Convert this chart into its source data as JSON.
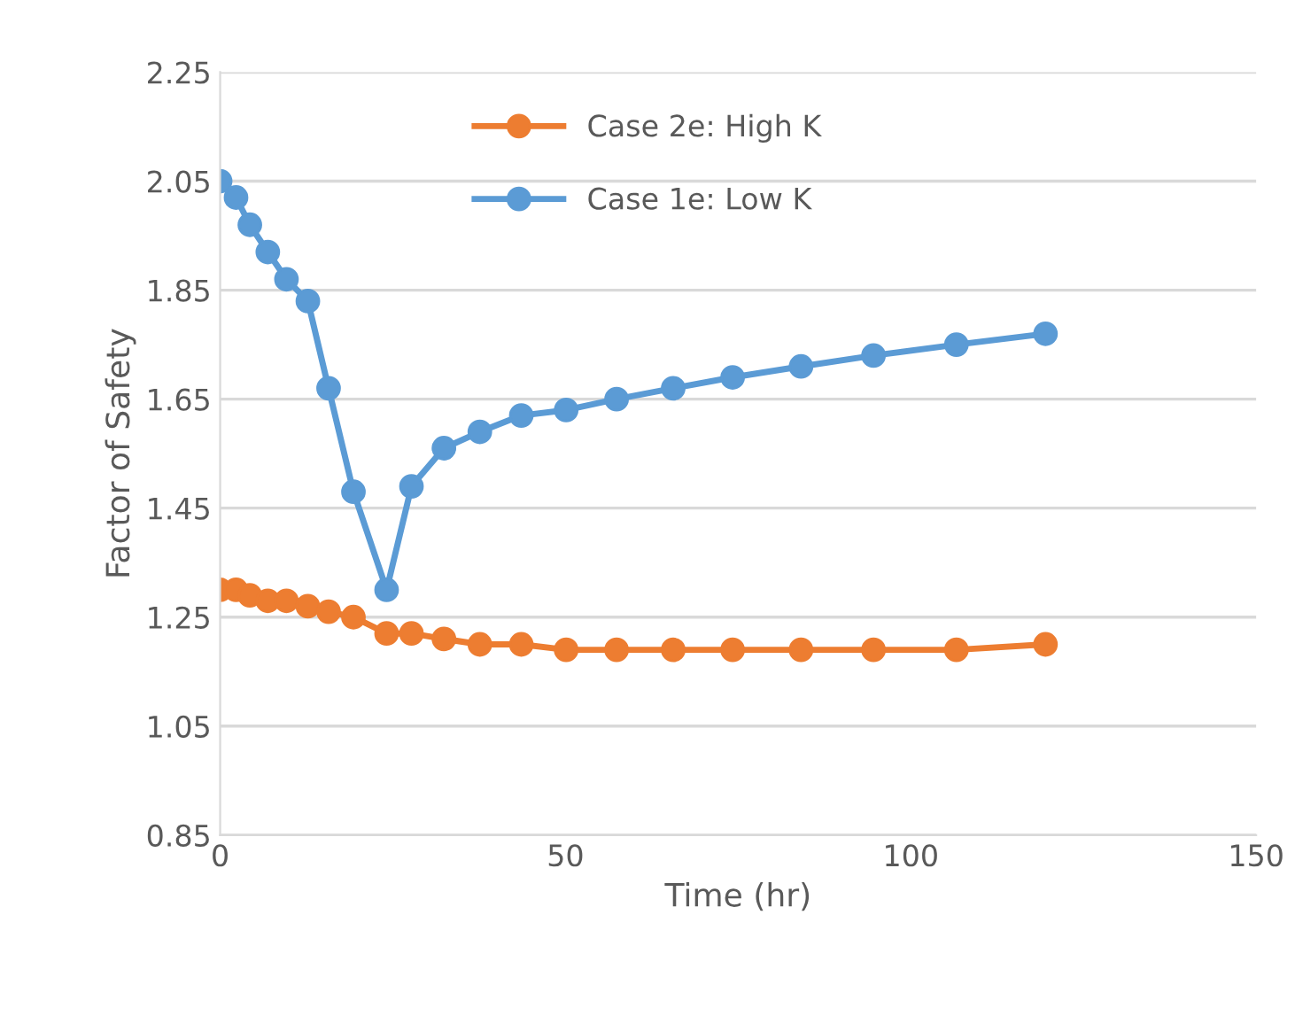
{
  "chart_data": {
    "type": "line",
    "xlabel": "Time (hr)",
    "ylabel": "Factor of Safety",
    "xlim": [
      0,
      150
    ],
    "xticks": [
      0,
      50,
      100,
      150
    ],
    "ylim": [
      0.85,
      2.25
    ],
    "yticks": [
      0.85,
      1.05,
      1.25,
      1.45,
      1.65,
      1.85,
      2.05,
      2.25
    ],
    "grid": "y",
    "legend": "top",
    "marker": "circle",
    "line_style": "solid",
    "series": [
      {
        "name": "Case 2e: High K",
        "color": "#ed7d31",
        "x": [
          0,
          2.3,
          4.3,
          6.9,
          9.6,
          12.7,
          15.7,
          19.3,
          24.1,
          27.7,
          32.4,
          37.6,
          43.6,
          50.1,
          57.4,
          65.6,
          74.2,
          84.1,
          94.6,
          106.6,
          119.5
        ],
        "values": [
          1.3,
          1.3,
          1.29,
          1.28,
          1.28,
          1.27,
          1.26,
          1.25,
          1.22,
          1.22,
          1.21,
          1.2,
          1.2,
          1.19,
          1.19,
          1.19,
          1.19,
          1.19,
          1.19,
          1.19,
          1.2
        ]
      },
      {
        "name": "Case 1e: Low K",
        "color": "#5b9bd5",
        "x": [
          0,
          2.3,
          4.3,
          6.9,
          9.6,
          12.7,
          15.7,
          19.3,
          24.1,
          27.7,
          32.4,
          37.6,
          43.6,
          50.1,
          57.4,
          65.6,
          74.2,
          84.1,
          94.6,
          106.6,
          119.5
        ],
        "values": [
          2.05,
          2.02,
          1.97,
          1.92,
          1.87,
          1.83,
          1.67,
          1.48,
          1.3,
          1.49,
          1.56,
          1.59,
          1.62,
          1.63,
          1.65,
          1.67,
          1.69,
          1.71,
          1.73,
          1.75,
          1.77
        ]
      }
    ]
  }
}
